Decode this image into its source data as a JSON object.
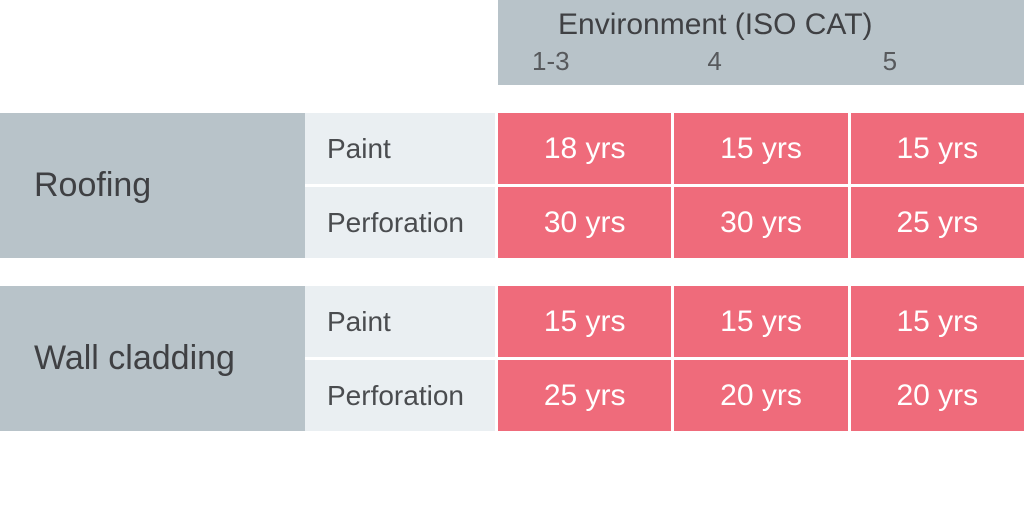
{
  "header": {
    "title": "Environment (ISO CAT)",
    "columns": [
      "1-3",
      "4",
      "5"
    ]
  },
  "groups": [
    {
      "category": "Roofing",
      "rows": [
        {
          "label": "Paint",
          "values": [
            "18 yrs",
            "15 yrs",
            "15 yrs"
          ]
        },
        {
          "label": "Perforation",
          "values": [
            "30 yrs",
            "30 yrs",
            "25 yrs"
          ]
        }
      ]
    },
    {
      "category": "Wall cladding",
      "rows": [
        {
          "label": "Paint",
          "values": [
            "15 yrs",
            "15 yrs",
            "15 yrs"
          ]
        },
        {
          "label": "Perforation",
          "values": [
            "25 yrs",
            "20 yrs",
            "20 yrs"
          ]
        }
      ]
    }
  ],
  "colors": {
    "header_bg": "#b8c3c9",
    "category_bg": "#b8c3c9",
    "sub_bg": "#eaeff2",
    "value_bg": "#ef6b7b",
    "value_text": "#ffffff",
    "text_dark": "#3f4043"
  }
}
